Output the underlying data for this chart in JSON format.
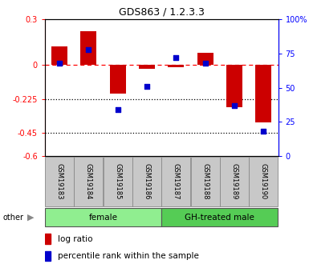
{
  "title": "GDS863 / 1.2.3.3",
  "samples": [
    "GSM19183",
    "GSM19184",
    "GSM19185",
    "GSM19186",
    "GSM19187",
    "GSM19188",
    "GSM19189",
    "GSM19190"
  ],
  "log_ratios": [
    0.12,
    0.22,
    -0.19,
    -0.025,
    -0.015,
    0.08,
    -0.28,
    -0.38
  ],
  "percentile_ranks": [
    68,
    78,
    34,
    51,
    72,
    68,
    37,
    18
  ],
  "groups": [
    {
      "label": "female",
      "color": "#90EE90",
      "start": 0,
      "end": 4
    },
    {
      "label": "GH-treated male",
      "color": "#55CC55",
      "start": 4,
      "end": 8
    }
  ],
  "ylim_left": [
    -0.6,
    0.3
  ],
  "ylim_right": [
    0,
    100
  ],
  "yticks_left": [
    0.3,
    0.0,
    -0.225,
    -0.45,
    -0.6
  ],
  "ytick_labels_left": [
    "0.3",
    "0",
    "-0.225",
    "-0.45",
    "-0.6"
  ],
  "yticks_right": [
    100,
    75,
    50,
    25,
    0
  ],
  "ytick_labels_right": [
    "100%",
    "75",
    "50",
    "25",
    "0"
  ],
  "bar_color": "#CC0000",
  "dot_color": "#0000CC",
  "label_box_color": "#C8C8C8",
  "other_label": "other",
  "legend_log_ratio": "log ratio",
  "legend_percentile": "percentile rank within the sample"
}
